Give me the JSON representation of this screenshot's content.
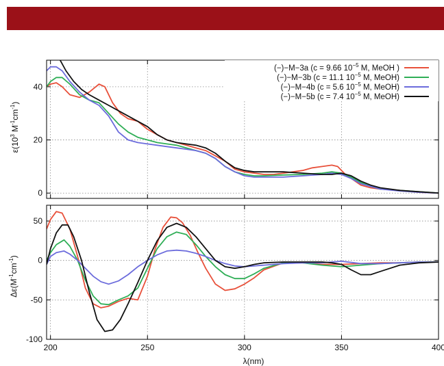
{
  "chart_data": [
    {
      "type": "line",
      "title": "",
      "xlabel": "",
      "ylabel_main": "ε(10",
      "ylabel_sup1": "3",
      "ylabel_mid": " M",
      "ylabel_sup2": "-1",
      "ylabel_end": "cm",
      "ylabel_sup3": "-1",
      "ylabel_close": ")",
      "xlim": [
        198,
        400
      ],
      "ylim": [
        -2,
        50
      ],
      "yticks": [
        "0",
        "20",
        "40"
      ],
      "ytick_values": [
        0,
        20,
        40
      ],
      "grid": true,
      "legend_position": "top-right",
      "series": [
        {
          "name_pre": "(−)−M−3a (c = 9.66 10",
          "name_sup": "−5",
          "name_post": " M, MeOH )",
          "color": "#e8503a",
          "x": [
            198,
            200,
            203,
            206,
            210,
            215,
            220,
            225,
            228,
            232,
            236,
            240,
            245,
            250,
            255,
            260,
            265,
            270,
            275,
            280,
            285,
            290,
            295,
            300,
            305,
            310,
            315,
            320,
            325,
            330,
            335,
            340,
            345,
            348,
            352,
            356,
            360,
            365,
            370,
            380,
            390,
            400
          ],
          "y": [
            40,
            41,
            41.5,
            40,
            37,
            36,
            38,
            41,
            40,
            34,
            30,
            28,
            27,
            24,
            22,
            20,
            19,
            18,
            17,
            16,
            14,
            12,
            9,
            8,
            7.5,
            7,
            7,
            7.5,
            8,
            8.5,
            9.5,
            10,
            10.5,
            10,
            7,
            5,
            3,
            2,
            1.5,
            1,
            0.3,
            0
          ]
        },
        {
          "name_pre": "(−)−M−3b (c = 11.1 10",
          "name_sup": "−5",
          "name_post": " M, MeOH)",
          "color": "#2fae56",
          "x": [
            198,
            200,
            203,
            206,
            210,
            215,
            220,
            225,
            230,
            235,
            240,
            245,
            250,
            255,
            260,
            265,
            270,
            275,
            280,
            285,
            290,
            295,
            300,
            305,
            310,
            320,
            330,
            340,
            345,
            350,
            355,
            360,
            365,
            370,
            380,
            390,
            400
          ],
          "y": [
            40,
            42,
            43.5,
            43.5,
            41,
            37,
            35,
            34,
            30,
            26,
            23,
            21,
            20,
            19,
            18.5,
            18,
            17,
            16,
            15,
            13,
            10,
            8,
            7,
            6.5,
            6.5,
            6.8,
            7,
            7.5,
            8,
            7.5,
            6,
            4,
            2.5,
            1.5,
            1,
            0.5,
            0
          ]
        },
        {
          "name_pre": "(−)−M−4b (c = 5.6 10",
          "name_sup": "−5",
          "name_post": " M, MeOH)",
          "color": "#6b6bdc",
          "x": [
            198,
            200,
            203,
            206,
            210,
            215,
            220,
            225,
            230,
            235,
            240,
            245,
            250,
            255,
            260,
            265,
            270,
            275,
            280,
            285,
            290,
            295,
            300,
            305,
            310,
            320,
            330,
            340,
            345,
            350,
            355,
            360,
            365,
            370,
            380,
            390,
            400
          ],
          "y": [
            46,
            47.5,
            47.5,
            46,
            42,
            38,
            35,
            33,
            29,
            23,
            20,
            19,
            18.5,
            18,
            17.5,
            17,
            16.5,
            16,
            15,
            13,
            10,
            8,
            6.5,
            6,
            6,
            6,
            6.5,
            7,
            7.5,
            7,
            5.5,
            3.5,
            2.5,
            1.5,
            0.8,
            0.3,
            0
          ]
        },
        {
          "name_pre": "(−)−M−5b (c = 7.4 10",
          "name_sup": "−5",
          "name_post": " M, MeOH)",
          "color": "#111111",
          "x": [
            205,
            208,
            212,
            216,
            220,
            225,
            230,
            235,
            240,
            245,
            250,
            255,
            260,
            265,
            270,
            275,
            280,
            285,
            290,
            295,
            300,
            305,
            310,
            320,
            330,
            340,
            345,
            350,
            355,
            360,
            365,
            370,
            380,
            390,
            400
          ],
          "y": [
            50,
            46,
            42,
            39,
            37,
            35,
            33,
            31,
            29,
            27,
            25,
            22,
            20,
            19,
            18.5,
            18,
            17,
            15,
            12,
            9.5,
            8.5,
            8,
            8,
            8,
            7.5,
            7,
            7,
            7.5,
            6.5,
            4.5,
            3,
            2,
            1,
            0.5,
            0
          ]
        }
      ]
    },
    {
      "type": "line",
      "title": "",
      "xlabel": "λ(nm)",
      "ylabel_main": "Δε(M",
      "ylabel_sup1": "-1",
      "ylabel_mid": "cm",
      "ylabel_sup2": "-1",
      "ylabel_close": ")",
      "xlim": [
        198,
        400
      ],
      "ylim": [
        -100,
        70
      ],
      "xticks": [
        "200",
        "250",
        "300",
        "350",
        "400"
      ],
      "xtick_values": [
        200,
        250,
        300,
        350,
        400
      ],
      "yticks": [
        "-100",
        "-50",
        "0",
        "50"
      ],
      "ytick_values": [
        -100,
        -50,
        0,
        50
      ],
      "grid": true,
      "series": [
        {
          "color": "#e8503a",
          "x": [
            198,
            200,
            203,
            206,
            210,
            214,
            218,
            222,
            226,
            230,
            235,
            240,
            245,
            250,
            254,
            258,
            262,
            265,
            268,
            272,
            276,
            280,
            285,
            290,
            295,
            300,
            305,
            310,
            320,
            330,
            340,
            350,
            360,
            370,
            380,
            390,
            400
          ],
          "y": [
            40,
            52,
            62,
            60,
            40,
            5,
            -35,
            -55,
            -60,
            -58,
            -52,
            -48,
            -50,
            -20,
            15,
            42,
            55,
            54,
            48,
            32,
            10,
            -10,
            -30,
            -38,
            -36,
            -30,
            -22,
            -12,
            -3,
            -3,
            -5,
            -5,
            -4,
            -3,
            -3,
            -2,
            -2
          ]
        },
        {
          "color": "#2fae56",
          "x": [
            198,
            200,
            203,
            207,
            210,
            214,
            218,
            222,
            226,
            230,
            235,
            240,
            245,
            250,
            255,
            260,
            265,
            270,
            275,
            280,
            285,
            290,
            295,
            300,
            305,
            310,
            320,
            330,
            340,
            350,
            360,
            370,
            380,
            390,
            400
          ],
          "y": [
            0,
            10,
            20,
            26,
            18,
            0,
            -25,
            -45,
            -55,
            -56,
            -50,
            -45,
            -35,
            -10,
            15,
            30,
            36,
            33,
            20,
            5,
            -8,
            -18,
            -23,
            -23,
            -17,
            -10,
            -3,
            -3,
            -6,
            -8,
            -6,
            -4,
            -3,
            -2,
            -2
          ]
        },
        {
          "color": "#6b6bdc",
          "x": [
            198,
            200,
            203,
            207,
            210,
            214,
            218,
            222,
            226,
            230,
            235,
            240,
            245,
            250,
            255,
            260,
            265,
            270,
            275,
            280,
            285,
            290,
            295,
            300,
            310,
            320,
            330,
            340,
            350,
            360,
            370,
            380,
            390,
            400
          ],
          "y": [
            -5,
            5,
            10,
            12,
            8,
            0,
            -10,
            -20,
            -27,
            -30,
            -26,
            -18,
            -8,
            0,
            7,
            12,
            13,
            12,
            9,
            5,
            0,
            -4,
            -7,
            -8,
            -6,
            -4,
            -3,
            -3,
            -1,
            -4,
            -4,
            -3,
            -2,
            -2
          ]
        },
        {
          "color": "#111111",
          "x": [
            198,
            200,
            203,
            206,
            209,
            212,
            216,
            220,
            224,
            228,
            232,
            236,
            240,
            245,
            250,
            255,
            260,
            265,
            270,
            275,
            280,
            285,
            290,
            295,
            300,
            305,
            310,
            320,
            330,
            340,
            345,
            350,
            355,
            360,
            365,
            370,
            380,
            390,
            400
          ],
          "y": [
            -5,
            15,
            35,
            45,
            45,
            30,
            0,
            -40,
            -75,
            -90,
            -88,
            -75,
            -55,
            -28,
            0,
            25,
            42,
            47,
            42,
            30,
            15,
            0,
            -8,
            -10,
            -8,
            -5,
            -3,
            -2,
            -2,
            -2,
            -3,
            -5,
            -12,
            -18,
            -18,
            -14,
            -6,
            -3,
            -2
          ]
        }
      ]
    }
  ]
}
